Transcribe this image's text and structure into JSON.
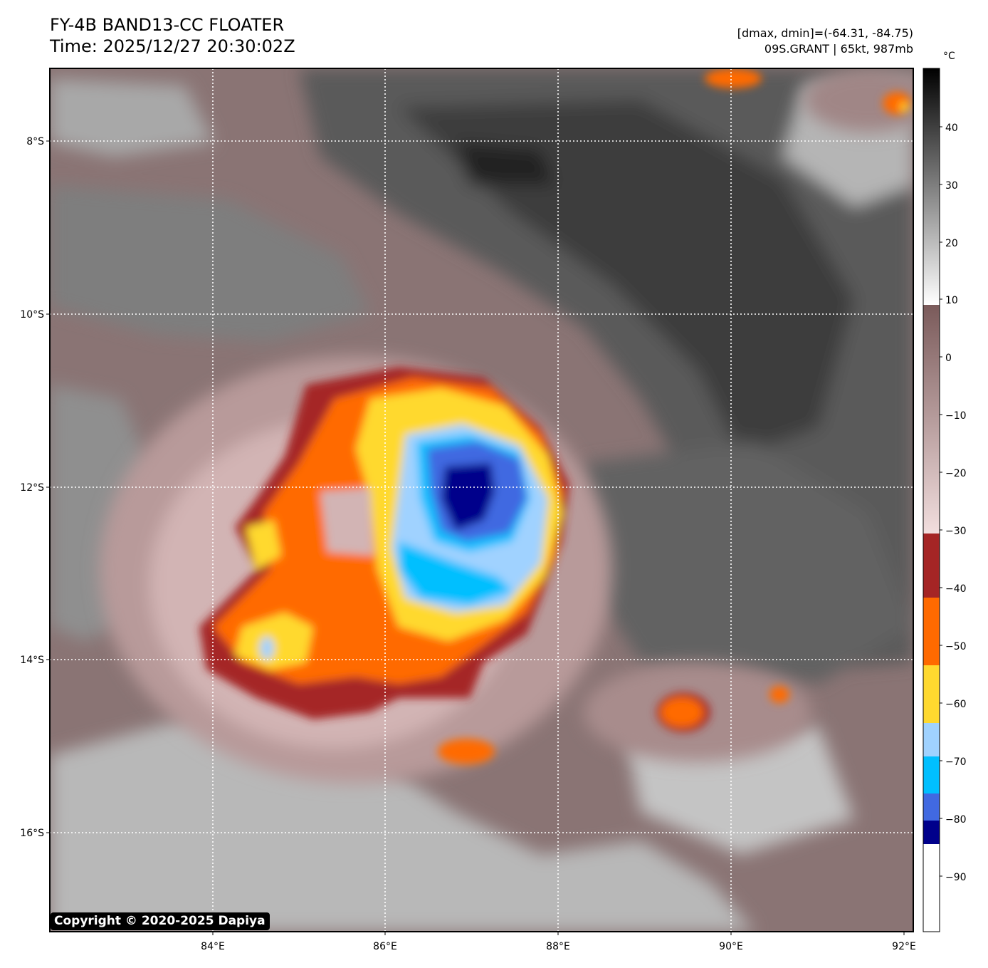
{
  "header": {
    "title_line1": "FY-4B BAND13-CC FLOATER",
    "title_line2": "Time: 2025/12/27 20:30:02Z",
    "info_line1": "[dmax, dmin]=(-64.31, -84.75)",
    "info_line2": "09S.GRANT | 65kt, 987mb"
  },
  "map": {
    "lon_ticks": [
      "84°E",
      "86°E",
      "88°E",
      "90°E",
      "92°E"
    ],
    "lat_ticks": [
      "8°S",
      "10°S",
      "12°S",
      "14°S",
      "16°S"
    ],
    "gridlines": "dotted white"
  },
  "colorbar": {
    "unit": "°C",
    "tick_labels": [
      "40",
      "30",
      "20",
      "10",
      "0",
      "−10",
      "−20",
      "−30",
      "−40",
      "−50",
      "−60",
      "−70",
      "−80",
      "−90"
    ],
    "colors": {
      "warm_top": "#000000",
      "warm_bottom": "#ffffff",
      "mid_top": "#d4b5b5",
      "mid_bottom": "#7a5a5a",
      "band_-30_-40": "#a52525",
      "band_-40_-50": "#ff6a00",
      "band_-50_-60": "#ffd92f",
      "band_-60_-70": "#a0d2ff",
      "band_-70_-75": "#00bfff",
      "band_-75_-80": "#4169e1",
      "band_-80_-85": "#00008b",
      "band_below_-85": "#ffffff"
    }
  },
  "copyright": "Copyright © 2020-2025 Dapiya"
}
